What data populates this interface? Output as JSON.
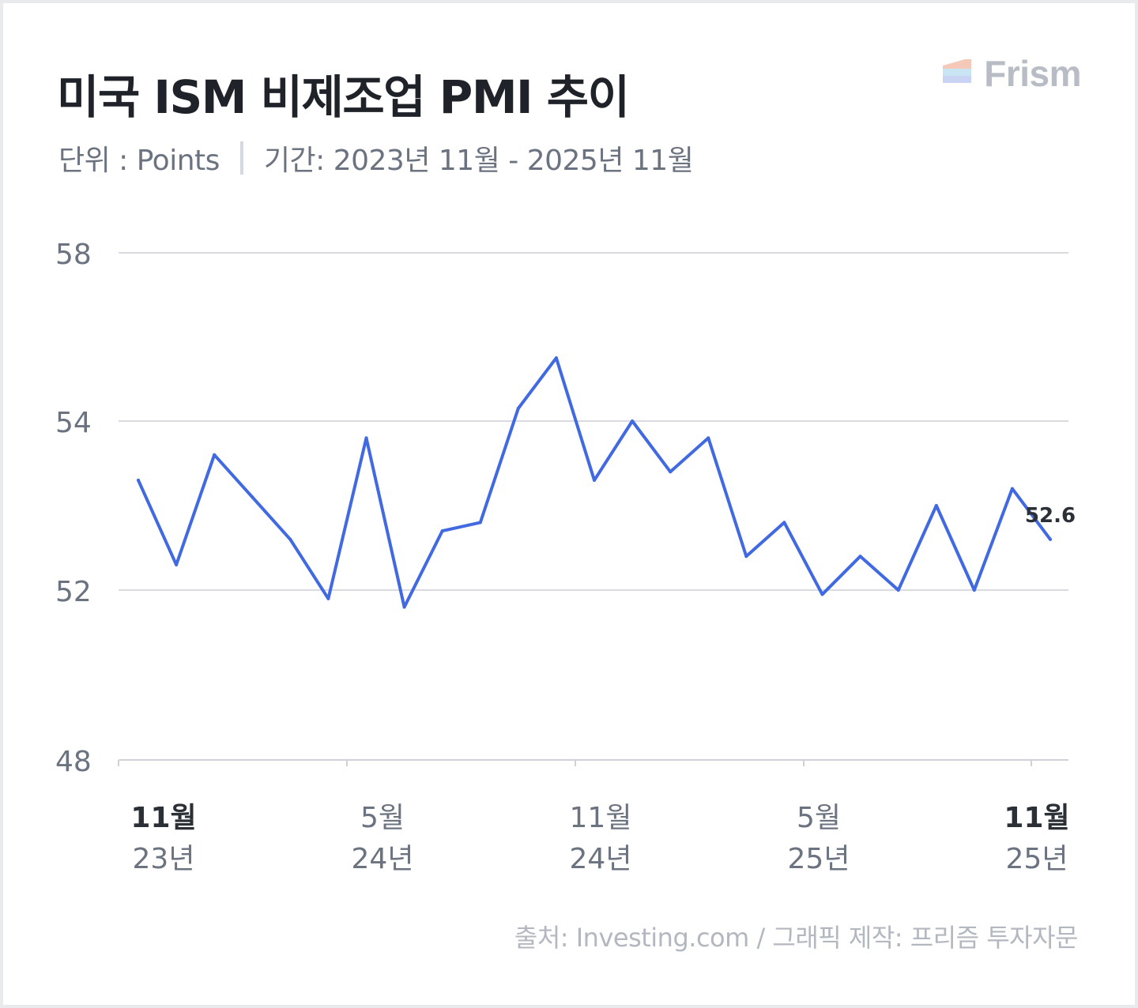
{
  "header": {
    "title": "미국 ISM 비제조업 PMI 추이",
    "unit": "단위 : Points",
    "period": "기간: 2023년 11월 - 2025년 11월"
  },
  "brand": {
    "name": "Frism"
  },
  "footer": {
    "source": "출처: Investing.com / 그래픽 제작: 프리즘 투자자문"
  },
  "colors": {
    "line": "#4169e1",
    "grid": "#d9dbe0",
    "axis_text": "#6b7280"
  },
  "chart_data": {
    "type": "line",
    "title": "미국 ISM 비제조업 PMI 추이",
    "xlabel": "",
    "ylabel": "",
    "ylim": [
      48,
      58
    ],
    "y_ticks": [
      "58",
      "54",
      "52",
      "48"
    ],
    "x_tick_labels": [
      {
        "month": "11월",
        "year": "23년",
        "bold": true
      },
      {
        "month": "5월",
        "year": "24년",
        "bold": false
      },
      {
        "month": "11월",
        "year": "24년",
        "bold": false
      },
      {
        "month": "5월",
        "year": "25년",
        "bold": false
      },
      {
        "month": "11월",
        "year": "25년",
        "bold": true
      }
    ],
    "grid": true,
    "series": [
      {
        "values": [
          53.3,
          52.3,
          53.6,
          53.1,
          52.6,
          51.8,
          53.8,
          51.6,
          52.7,
          52.8,
          54.3,
          55.5,
          53.3,
          54.0,
          53.4,
          53.8,
          52.4,
          52.8,
          51.9,
          52.4,
          52.0,
          53.0,
          52.0,
          53.2,
          52.6
        ],
        "last_label": "52.6"
      }
    ]
  }
}
